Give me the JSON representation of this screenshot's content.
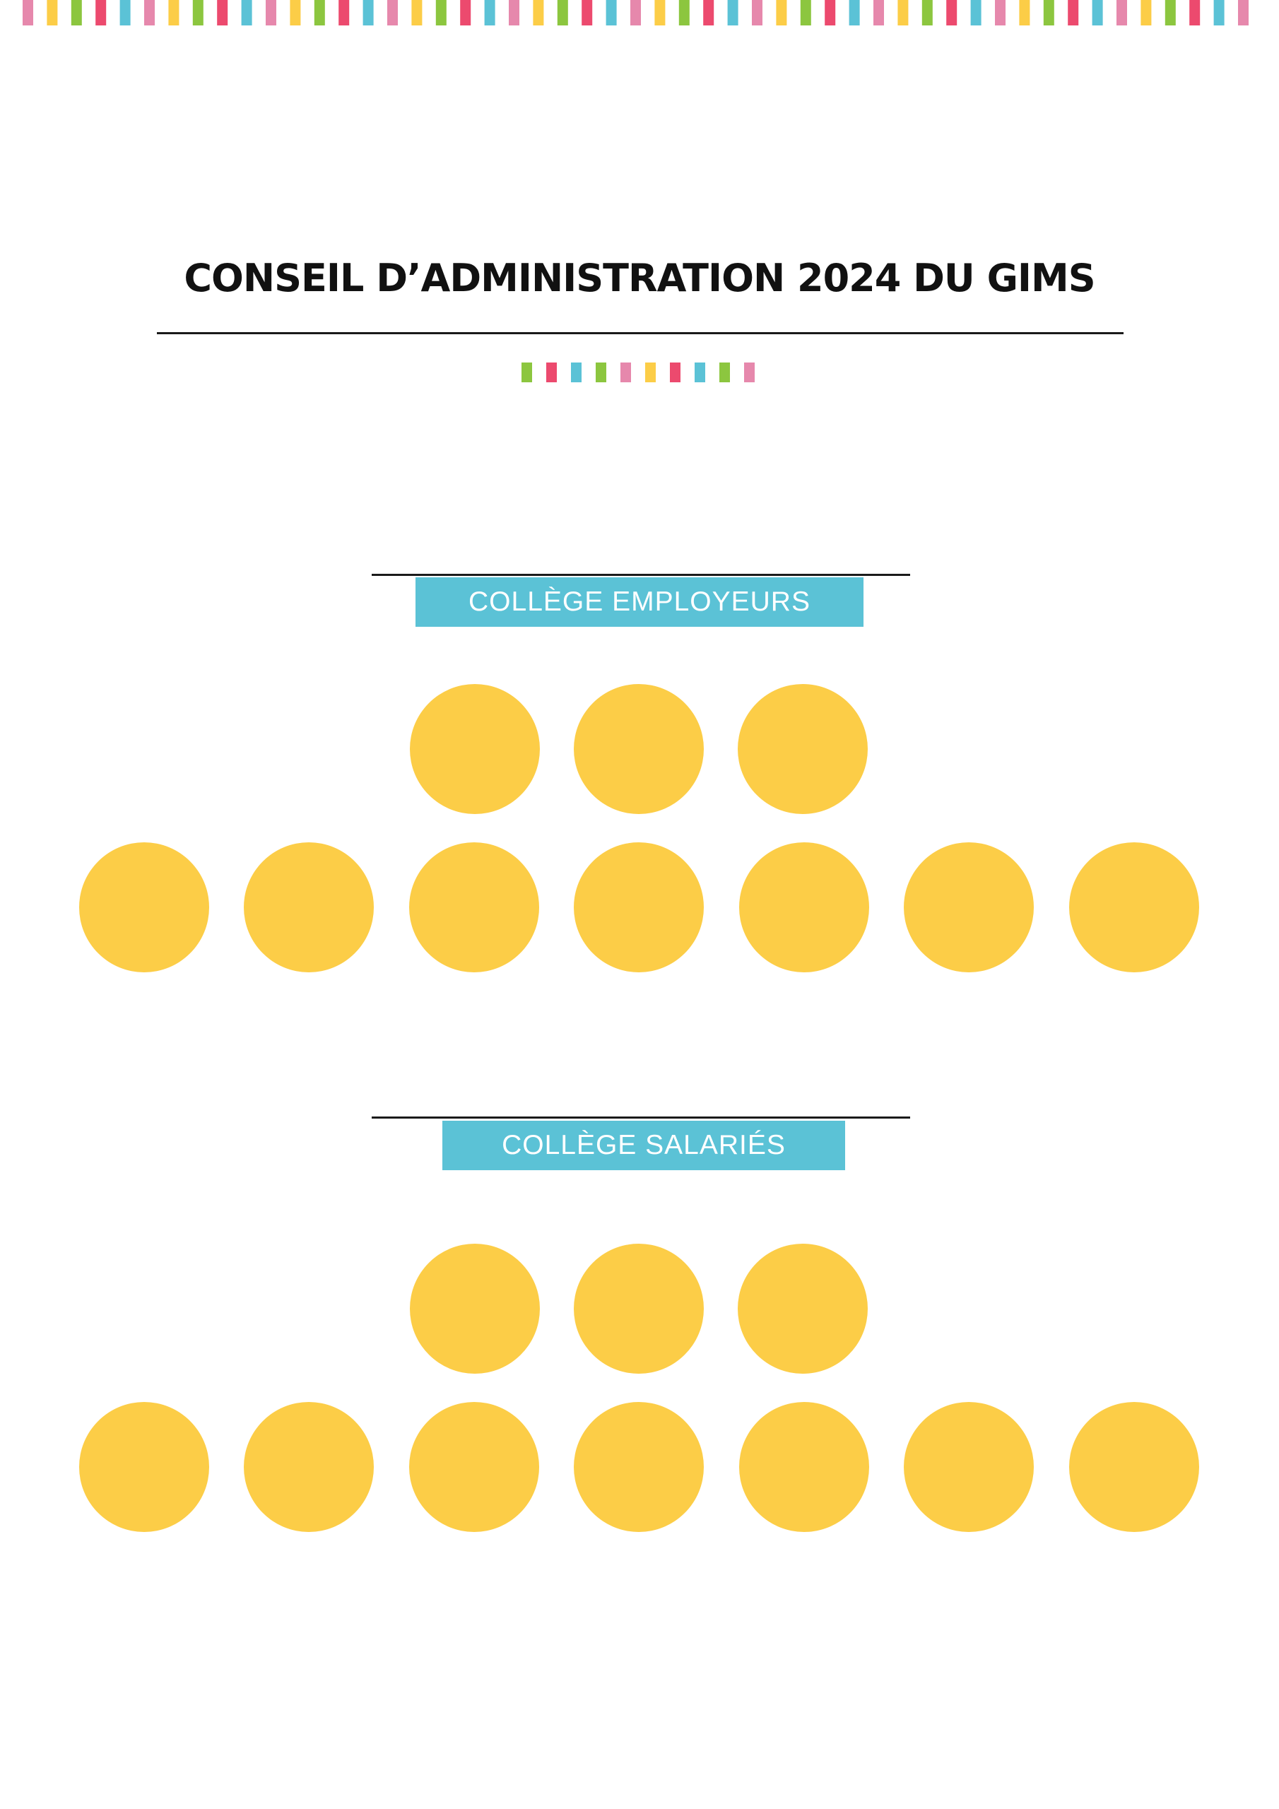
{
  "title": "CONSEIL D’ADMINISTRATION 2024 DU GIMS",
  "colors": {
    "accent": "#5bc2d6",
    "seat": "#fccd47",
    "rule": "#1a1a1a",
    "stripe_palette": [
      "#8cc63f",
      "#ec4a6e",
      "#5bc2d6",
      "#e688ac",
      "#fccd47"
    ]
  },
  "colleges": [
    {
      "label": "COLLÈGE EMPLOYEURS",
      "rows": [
        3,
        7
      ]
    },
    {
      "label": "COLLÈGE SALARIÉS",
      "rows": [
        3,
        7
      ]
    }
  ]
}
